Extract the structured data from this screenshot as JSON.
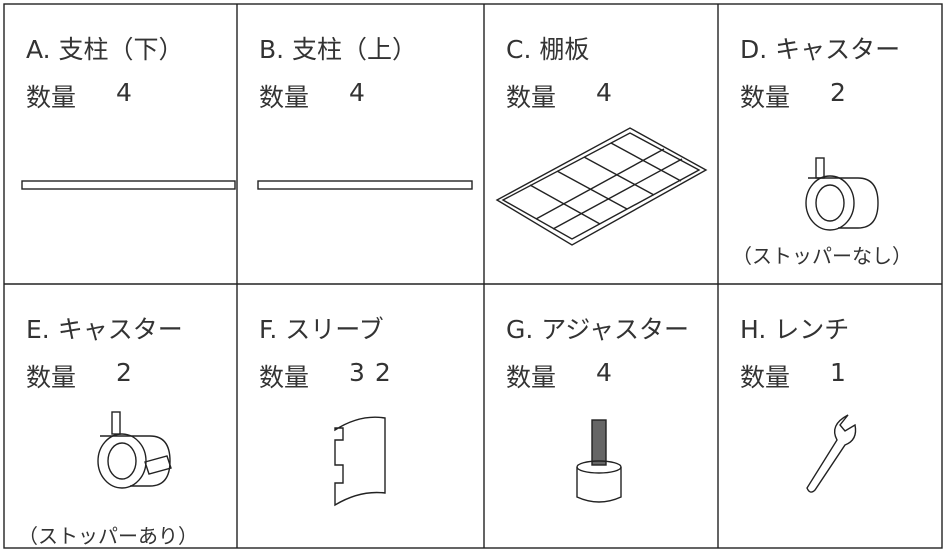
{
  "items": [
    {
      "label": "A. 支柱（下）",
      "quantity_label": "数量",
      "quantity": 4
    },
    {
      "label": "B. 支柱（上）",
      "quantity_label": "数量",
      "quantity": 4
    },
    {
      "label": "C. 棚板",
      "quantity_label": "数量",
      "quantity": 4
    },
    {
      "label": "D. キャスター",
      "quantity_label": "数量",
      "quantity": 2,
      "note": "（ストッパーなし）"
    },
    {
      "label": "E. キャスター",
      "quantity_label": "数量",
      "quantity": 2,
      "note": "（ストッパーあり）"
    },
    {
      "label": "F. スリーブ",
      "quantity_label": "数量",
      "quantity": 32
    },
    {
      "label": "G. アジャスター",
      "quantity_label": "数量",
      "quantity": 4
    },
    {
      "label": "H. レンチ",
      "quantity_label": "数量",
      "quantity": 1
    }
  ]
}
